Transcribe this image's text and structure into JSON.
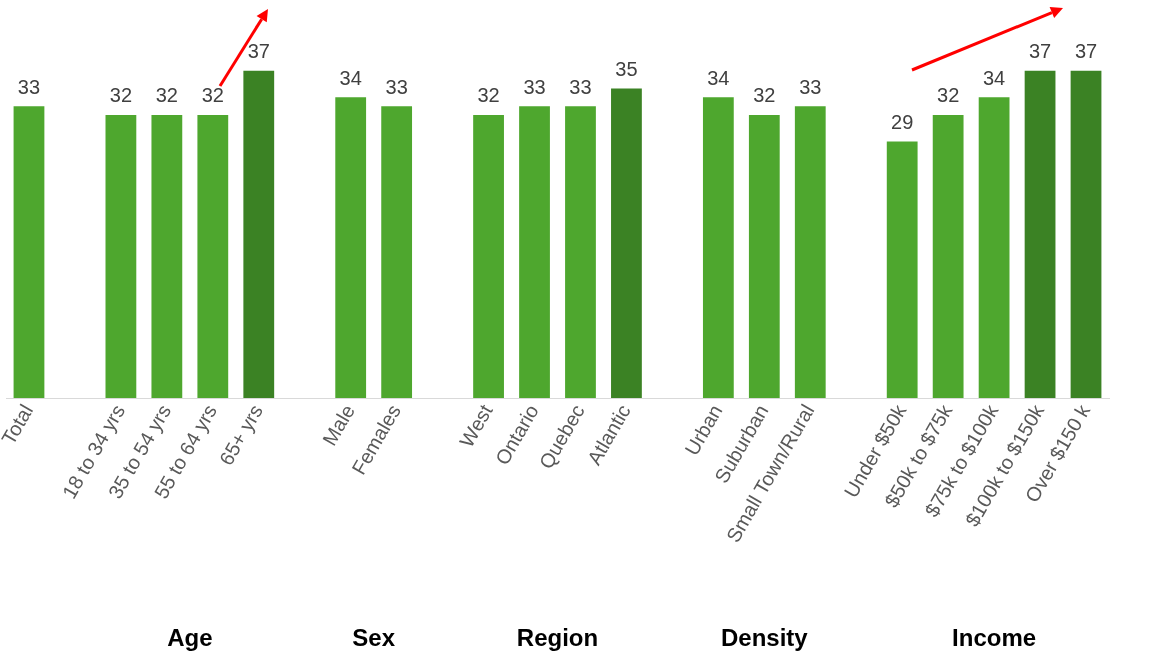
{
  "chart_data": {
    "type": "bar",
    "categories": [
      "Total",
      null,
      "18 to 34 yrs",
      "35 to 54 yrs",
      "55 to 64 yrs",
      "65+ yrs",
      null,
      "Male",
      "Females",
      null,
      "West",
      "Ontario",
      "Quebec",
      "Atlantic",
      null,
      "Urban",
      "Suburban",
      "Small Town/Rural",
      null,
      "Under $50k",
      "$50k to $75k",
      "$75k to $100k",
      "$100k to $150k",
      "Over $150 k"
    ],
    "values": [
      33,
      null,
      32,
      32,
      32,
      37,
      null,
      34,
      33,
      null,
      32,
      33,
      33,
      35,
      null,
      34,
      32,
      33,
      null,
      29,
      32,
      34,
      37,
      37
    ],
    "colors": [
      "#4ea72e",
      null,
      "#4ea72e",
      "#4ea72e",
      "#4ea72e",
      "#3b8224",
      null,
      "#4ea72e",
      "#4ea72e",
      null,
      "#4ea72e",
      "#4ea72e",
      "#4ea72e",
      "#3b8224",
      null,
      "#4ea72e",
      "#4ea72e",
      "#4ea72e",
      null,
      "#4ea72e",
      "#4ea72e",
      "#4ea72e",
      "#3b8224",
      "#3b8224"
    ],
    "data_labels": true,
    "grid": false,
    "legend": false,
    "annotations": [
      "Age",
      "Sex",
      "Region",
      "Density",
      "Income"
    ]
  }
}
